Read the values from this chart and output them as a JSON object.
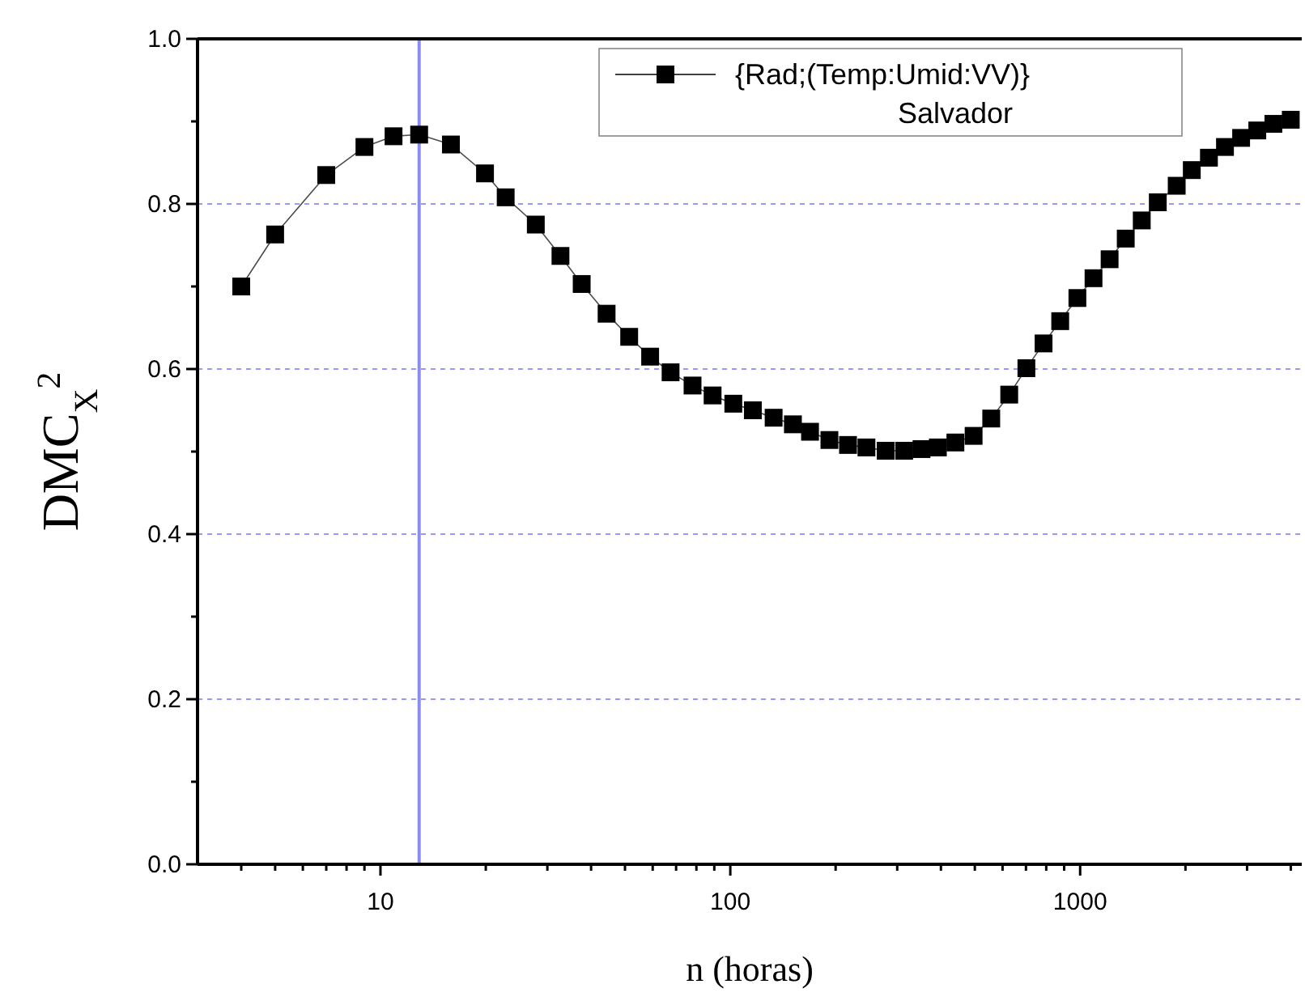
{
  "chart_data": {
    "type": "line",
    "xlabel": "n (horas)",
    "ylabel": "DMC$_{X}$$^{2}$",
    "log": "x",
    "grid": "y",
    "legend": "top right",
    "marker": "square",
    "line_style": "solid",
    "xlim": [
      3,
      4300
    ],
    "ylim": [
      0,
      1
    ],
    "xticks": [
      {
        "value": 4,
        "label": null
      },
      {
        "value": 5,
        "label": null
      },
      {
        "value": 6,
        "label": null
      },
      {
        "value": 7,
        "label": null
      },
      {
        "value": 8,
        "label": null
      },
      {
        "value": 9,
        "label": null
      },
      10,
      {
        "value": 20,
        "label": null
      },
      {
        "value": 30,
        "label": null
      },
      {
        "value": 40,
        "label": null
      },
      {
        "value": 50,
        "label": null
      },
      {
        "value": 60,
        "label": null
      },
      {
        "value": 70,
        "label": null
      },
      {
        "value": 80,
        "label": null
      },
      {
        "value": 90,
        "label": null
      },
      100,
      {
        "value": 200,
        "label": null
      },
      {
        "value": 300,
        "label": null
      },
      {
        "value": 400,
        "label": null
      },
      {
        "value": 500,
        "label": null
      },
      {
        "value": 600,
        "label": null
      },
      {
        "value": 700,
        "label": null
      },
      {
        "value": 800,
        "label": null
      },
      {
        "value": 900,
        "label": null
      },
      1000,
      {
        "value": 2000,
        "label": null
      },
      {
        "value": 3000,
        "label": null
      },
      {
        "value": 4000,
        "label": null
      }
    ],
    "yticks": [
      {
        "value": 0,
        "label": "0.0"
      },
      {
        "value": 0.1,
        "label": null
      },
      0.2,
      {
        "value": 0.3,
        "label": null
      },
      0.4,
      {
        "value": 0.5,
        "label": null
      },
      0.6,
      {
        "value": 0.7,
        "label": null
      },
      0.8,
      {
        "value": 0.9,
        "label": null
      },
      {
        "value": 1,
        "label": "1.0"
      }
    ],
    "ref_lines": [
      {
        "axis": "x",
        "value": 12.9,
        "color": "#8c8cf0",
        "line_style": "solid"
      }
    ],
    "series": [
      {
        "name": "{Rad;(Temp:Umid:VV)} Salvador",
        "color": "#000000",
        "x": [
          4,
          5,
          7,
          9,
          10.9,
          12.9,
          15.9,
          19.9,
          22.8,
          27.8,
          32.7,
          37.6,
          44.3,
          51.4,
          59,
          67.5,
          78,
          89,
          102,
          116,
          133,
          151,
          169,
          192,
          217,
          245,
          278,
          314,
          352,
          392,
          440,
          496,
          557,
          627,
          702,
          786,
          877,
          982,
          1092,
          1214,
          1350,
          1500,
          1667,
          1888,
          2085,
          2334,
          2594,
          2885,
          3209,
          3567,
          4000
        ],
        "values": [
          0.7,
          0.763,
          0.835,
          0.869,
          0.882,
          0.884,
          0.872,
          0.837,
          0.808,
          0.775,
          0.737,
          0.703,
          0.667,
          0.639,
          0.615,
          0.596,
          0.58,
          0.568,
          0.558,
          0.55,
          0.541,
          0.533,
          0.524,
          0.514,
          0.508,
          0.505,
          0.501,
          0.501,
          0.503,
          0.505,
          0.511,
          0.519,
          0.54,
          0.569,
          0.601,
          0.631,
          0.658,
          0.686,
          0.71,
          0.733,
          0.758,
          0.78,
          0.802,
          0.822,
          0.841,
          0.856,
          0.869,
          0.88,
          0.889,
          0.897,
          0.902
        ]
      }
    ]
  }
}
